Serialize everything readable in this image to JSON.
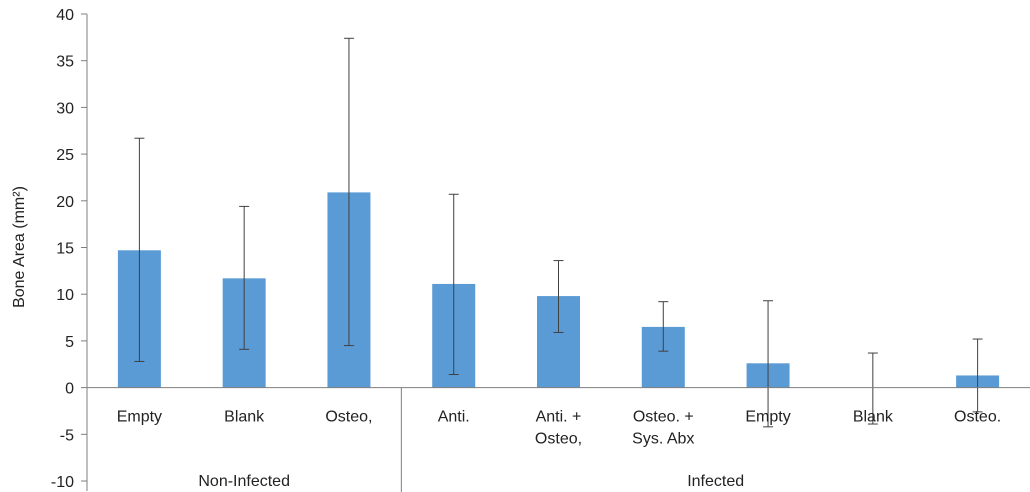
{
  "chart_data": {
    "type": "bar",
    "ylabel": "Bone Area (mm²)",
    "ylim": [
      -10,
      40
    ],
    "ytick_step": 5,
    "grid": false,
    "bar_color": "#5b9bd5",
    "categories": [
      {
        "label": [
          "Empty"
        ],
        "value": 14.7,
        "err_low": 2.8,
        "err_high": 26.7
      },
      {
        "label": [
          "Blank"
        ],
        "value": 11.7,
        "err_low": 4.1,
        "err_high": 19.4
      },
      {
        "label": [
          "Osteo,"
        ],
        "value": 20.9,
        "err_low": 4.5,
        "err_high": 37.4
      },
      {
        "label": [
          "Anti."
        ],
        "value": 11.1,
        "err_low": 1.4,
        "err_high": 20.7
      },
      {
        "label": [
          "Anti. +",
          "Osteo,"
        ],
        "value": 9.8,
        "err_low": 5.9,
        "err_high": 13.6
      },
      {
        "label": [
          "Osteo. +",
          "Sys. Abx"
        ],
        "value": 6.5,
        "err_low": 3.9,
        "err_high": 9.2
      },
      {
        "label": [
          "Empty"
        ],
        "value": 2.6,
        "err_low": -4.2,
        "err_high": 9.3
      },
      {
        "label": [
          "Blank"
        ],
        "value": 0,
        "err_low": -3.9,
        "err_high": 3.7
      },
      {
        "label": [
          "Osteo."
        ],
        "value": 1.3,
        "err_low": -2.6,
        "err_high": 5.2
      }
    ],
    "groups": [
      {
        "label": "Non-Infected",
        "start": 0,
        "end": 2
      },
      {
        "label": "Infected",
        "start": 3,
        "end": 8
      }
    ]
  }
}
